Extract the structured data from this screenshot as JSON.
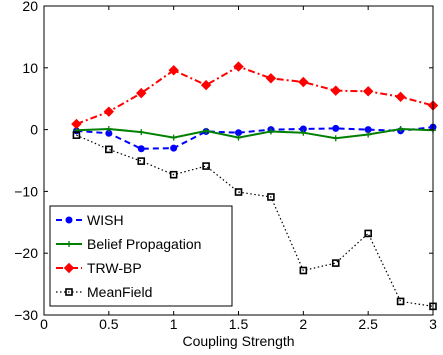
{
  "chart_data": {
    "type": "line",
    "title": "",
    "xlabel": "Coupling Strength",
    "ylabel": "",
    "xlim": [
      0,
      3
    ],
    "ylim": [
      -30,
      20
    ],
    "xticks": [
      0,
      0.5,
      1,
      1.5,
      2,
      2.5,
      3
    ],
    "xtick_labels": [
      "0",
      "0.5",
      "1",
      "1.5",
      "2",
      "2.5",
      "3"
    ],
    "yticks": [
      -30,
      -20,
      -10,
      0,
      10,
      20
    ],
    "ytick_labels": [
      "−30",
      "−20",
      "−10",
      "0",
      "10",
      "20"
    ],
    "grid": false,
    "legend_position": "lower-left",
    "x": [
      0.25,
      0.5,
      0.75,
      1.0,
      1.25,
      1.5,
      1.75,
      2.0,
      2.25,
      2.5,
      2.75,
      3.0
    ],
    "series": [
      {
        "name": "WISH",
        "color": "#0000ff",
        "style": "dashed",
        "marker": "circle",
        "values": [
          -0.2,
          -0.6,
          -3.1,
          -3.0,
          -0.3,
          -0.5,
          0.0,
          0.1,
          0.2,
          0.0,
          -0.2,
          0.4
        ]
      },
      {
        "name": "Belief Propagation",
        "color": "#008000",
        "style": "solid",
        "marker": "plus",
        "values": [
          -0.1,
          0.1,
          -0.4,
          -1.3,
          -0.2,
          -1.3,
          -0.3,
          -0.5,
          -1.4,
          -0.8,
          0.1,
          -0.1
        ]
      },
      {
        "name": "TRW-BP",
        "color": "#ff0000",
        "style": "dashdot",
        "marker": "diamond",
        "values": [
          0.9,
          2.9,
          5.9,
          9.6,
          7.2,
          10.2,
          8.3,
          7.7,
          6.3,
          6.2,
          5.3,
          3.9
        ]
      },
      {
        "name": "MeanField",
        "color": "#000000",
        "style": "dotted",
        "marker": "square",
        "values": [
          -0.9,
          -3.2,
          -5.1,
          -7.3,
          -5.9,
          -10.1,
          -10.9,
          -22.8,
          -21.6,
          -16.8,
          -27.8,
          -28.6
        ]
      }
    ]
  }
}
